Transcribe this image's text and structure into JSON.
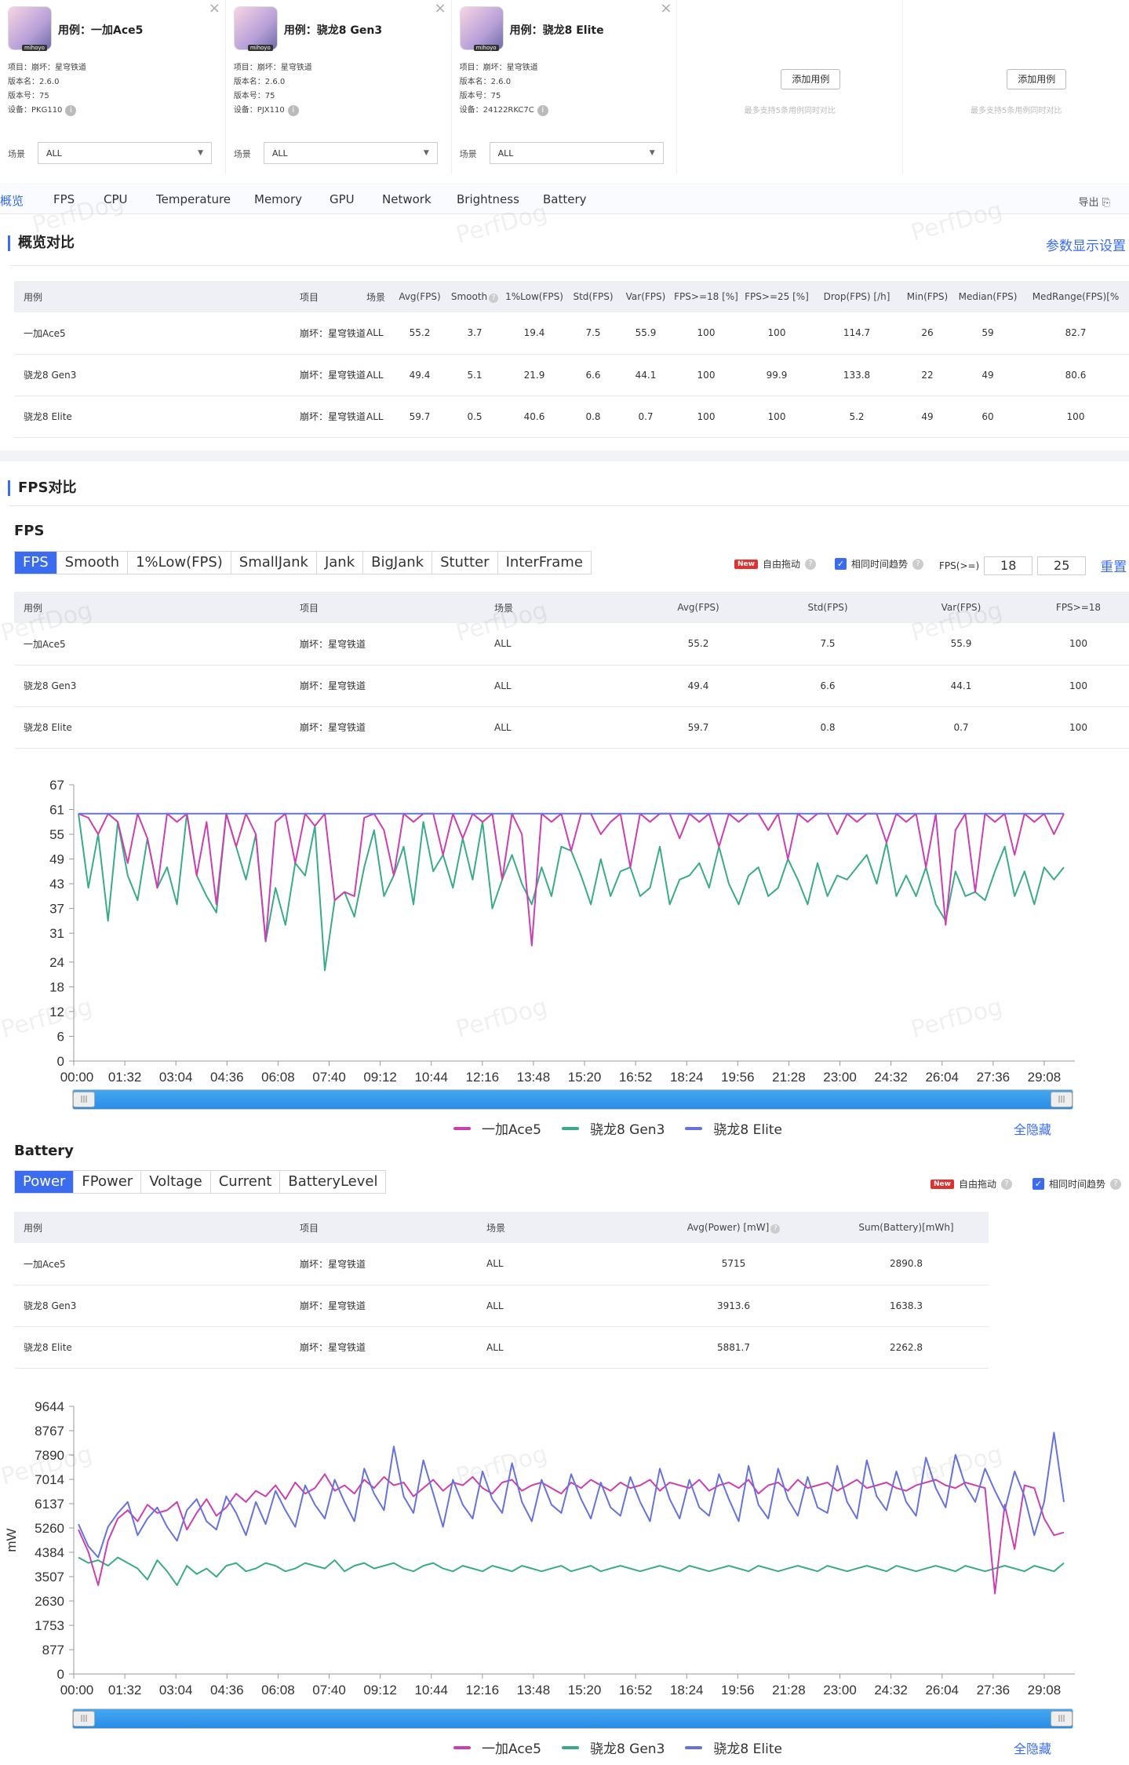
{
  "cases": [
    {
      "title": "用例：一加Ace5",
      "project": "项目：崩坏：星穹铁道",
      "version_name": "版本名：2.6.0",
      "version_code": "版本号：75",
      "device": "设备：PKG110",
      "thumb_tag": "mihoyo",
      "scene_label": "场景",
      "scene_value": "ALL"
    },
    {
      "title": "用例：骁龙8 Gen3",
      "project": "项目：崩坏：星穹铁道",
      "version_name": "版本名：2.6.0",
      "version_code": "版本号：75",
      "device": "设备：PJX110",
      "thumb_tag": "mihoyo",
      "scene_label": "场景",
      "scene_value": "ALL"
    },
    {
      "title": "用例：骁龙8 Elite",
      "project": "项目：崩坏：星穹铁道",
      "version_name": "版本名：2.6.0",
      "version_code": "版本号：75",
      "device": "设备：24122RKC7C",
      "thumb_tag": "mihoyo",
      "scene_label": "场景",
      "scene_value": "ALL"
    }
  ],
  "add_case": {
    "label": "添加用例",
    "note": "最多支持5条用例同时对比"
  },
  "tabs": [
    "概览",
    "FPS",
    "CPU",
    "Temperature",
    "Memory",
    "GPU",
    "Network",
    "Brightness",
    "Battery"
  ],
  "export_label": "导出",
  "overview": {
    "title": "概览对比",
    "settings_link": "参数显示设置",
    "headers": [
      "用例",
      "项目",
      "场景",
      "Avg(FPS)",
      "Smooth",
      "1%Low(FPS)",
      "Std(FPS)",
      "Var(FPS)",
      "FPS>=18 [%]",
      "FPS>=25 [%]",
      "Drop(FPS) [/h]",
      "Min(FPS)",
      "Median(FPS)",
      "MedRange(FPS)[%"
    ],
    "rows": [
      [
        "一加Ace5",
        "崩坏：星穹铁道",
        "ALL",
        "55.2",
        "3.7",
        "19.4",
        "7.5",
        "55.9",
        "100",
        "100",
        "114.7",
        "26",
        "59",
        "82.7"
      ],
      [
        "骁龙8 Gen3",
        "崩坏：星穹铁道",
        "ALL",
        "49.4",
        "5.1",
        "21.9",
        "6.6",
        "44.1",
        "100",
        "99.9",
        "133.8",
        "22",
        "49",
        "80.6"
      ],
      [
        "骁龙8 Elite",
        "崩坏：星穹铁道",
        "ALL",
        "59.7",
        "0.5",
        "40.6",
        "0.8",
        "0.7",
        "100",
        "100",
        "5.2",
        "49",
        "60",
        "100"
      ]
    ]
  },
  "fps_section": {
    "title": "FPS对比",
    "subtitle": "FPS",
    "seg": [
      "FPS",
      "Smooth",
      "1%Low(FPS)",
      "SmallJank",
      "Jank",
      "BigJank",
      "Stutter",
      "InterFrame"
    ],
    "new_badge": "New",
    "free_drag": "自由拖动",
    "same_trend": "相同时间趋势",
    "fps_ge": "FPS(>=)",
    "fps_ge_1": "18",
    "fps_ge_2": "25",
    "reset": "重置",
    "headers": [
      "用例",
      "项目",
      "场景",
      "Avg(FPS)",
      "Std(FPS)",
      "Var(FPS)",
      "FPS>=18"
    ],
    "rows": [
      [
        "一加Ace5",
        "崩坏：星穹铁道",
        "ALL",
        "55.2",
        "7.5",
        "55.9",
        "100"
      ],
      [
        "骁龙8 Gen3",
        "崩坏：星穹铁道",
        "ALL",
        "49.4",
        "6.6",
        "44.1",
        "100"
      ],
      [
        "骁龙8 Elite",
        "崩坏：星穹铁道",
        "ALL",
        "59.7",
        "0.8",
        "0.7",
        "100"
      ]
    ]
  },
  "battery_section": {
    "subtitle": "Battery",
    "seg": [
      "Power",
      "FPower",
      "Voltage",
      "Current",
      "BatteryLevel"
    ],
    "headers": [
      "用例",
      "项目",
      "场景",
      "Avg(Power) [mW]",
      "Sum(Battery)[mWh]"
    ],
    "rows": [
      [
        "一加Ace5",
        "崩坏：星穹铁道",
        "ALL",
        "5715",
        "2890.8"
      ],
      [
        "骁龙8 Gen3",
        "崩坏：星穹铁道",
        "ALL",
        "3913.6",
        "1638.3"
      ],
      [
        "骁龙8 Elite",
        "崩坏：星穹铁道",
        "ALL",
        "5881.7",
        "2262.8"
      ]
    ]
  },
  "legend": [
    "一加Ace5",
    "骁龙8 Gen3",
    "骁龙8 Elite"
  ],
  "hide_all": "全隐藏",
  "watermark": "PerfDog",
  "colors": {
    "ace5": "#cc3fb0",
    "gen3": "#3aab8a",
    "elite": "#6673dd",
    "accent": "#3b6cf0"
  },
  "chart_data": [
    {
      "type": "line",
      "ylim": [
        0,
        67
      ],
      "yticks": [
        0,
        6,
        12,
        18,
        24,
        31,
        37,
        43,
        49,
        55,
        61,
        67
      ],
      "xticks": [
        "00:00",
        "01:32",
        "03:04",
        "04:36",
        "06:08",
        "07:40",
        "09:12",
        "10:44",
        "12:16",
        "13:48",
        "15:20",
        "16:52",
        "18:24",
        "19:56",
        "21:28",
        "23:00",
        "24:32",
        "26:04",
        "27:36",
        "29:08"
      ],
      "series": [
        {
          "name": "一加Ace5",
          "values": [
            60,
            59,
            55,
            60,
            58,
            48,
            60,
            54,
            42,
            60,
            58,
            60,
            45,
            58,
            38,
            60,
            52,
            60,
            55,
            29,
            58,
            60,
            48,
            60,
            57,
            60,
            39,
            41,
            40,
            59,
            60,
            56,
            45,
            60,
            58,
            60,
            60,
            50,
            60,
            54,
            60,
            58,
            60,
            44,
            60,
            55,
            28,
            60,
            58,
            60,
            51,
            60,
            60,
            55,
            58,
            60,
            47,
            60,
            58,
            60,
            60,
            54,
            60,
            58,
            60,
            52,
            60,
            58,
            60,
            60,
            56,
            60,
            49,
            60,
            58,
            60,
            60,
            55,
            60,
            58,
            60,
            60,
            53,
            60,
            58,
            60,
            47,
            60,
            33,
            56,
            60,
            41,
            60,
            58,
            60,
            50,
            60,
            58,
            60,
            55,
            60
          ]
        },
        {
          "name": "骁龙8 Gen3",
          "values": [
            60,
            42,
            55,
            34,
            58,
            45,
            39,
            54,
            42,
            47,
            38,
            60,
            45,
            40,
            36,
            60,
            52,
            44,
            55,
            29,
            42,
            33,
            48,
            45,
            57,
            22,
            39,
            41,
            35,
            47,
            56,
            40,
            45,
            52,
            38,
            58,
            46,
            50,
            42,
            54,
            44,
            58,
            37,
            44,
            50,
            43,
            38,
            47,
            40,
            52,
            51,
            45,
            38,
            49,
            40,
            46,
            47,
            40,
            42,
            52,
            38,
            44,
            45,
            48,
            42,
            52,
            43,
            38,
            45,
            47,
            40,
            42,
            49,
            44,
            38,
            48,
            40,
            45,
            44,
            47,
            50,
            43,
            53,
            40,
            45,
            40,
            47,
            38,
            34,
            46,
            40,
            41,
            39,
            46,
            52,
            40,
            46,
            38,
            47,
            44,
            47
          ]
        },
        {
          "name": "骁龙8 Elite",
          "values": [
            60,
            60,
            60,
            60,
            60,
            60,
            60,
            60,
            60,
            60,
            60,
            60,
            60,
            60,
            60,
            60,
            60,
            60,
            60,
            60,
            60,
            60,
            60,
            60,
            60,
            60,
            60,
            60,
            60,
            60,
            60,
            60,
            60,
            60,
            60,
            60,
            60,
            60,
            60,
            60,
            60,
            60,
            60,
            60,
            60,
            60,
            60,
            60,
            60,
            60,
            60,
            60,
            60,
            60,
            60,
            60,
            60,
            60,
            60,
            60,
            60,
            60,
            60,
            60,
            60,
            60,
            60,
            60,
            60,
            60,
            60,
            60,
            60,
            60,
            60,
            60,
            60,
            60,
            60,
            60,
            60,
            60,
            60,
            60,
            60,
            60,
            60,
            60,
            60,
            60,
            60,
            60,
            60,
            60,
            60,
            60,
            60,
            60,
            60,
            60,
            60
          ]
        }
      ]
    },
    {
      "type": "line",
      "ylabel": "mW",
      "ylim": [
        0,
        9644
      ],
      "yticks": [
        0,
        877,
        1753,
        2630,
        3507,
        4384,
        5260,
        6137,
        7014,
        7890,
        8767,
        9644
      ],
      "xticks": [
        "00:00",
        "01:32",
        "03:04",
        "04:36",
        "06:08",
        "07:40",
        "09:12",
        "10:44",
        "12:16",
        "13:48",
        "15:20",
        "16:52",
        "18:24",
        "19:56",
        "21:28",
        "23:00",
        "24:32",
        "26:04",
        "27:36",
        "29:08"
      ],
      "series": [
        {
          "name": "一加Ace5",
          "values": [
            5200,
            4400,
            3200,
            4800,
            5600,
            5900,
            5500,
            6100,
            5800,
            5900,
            6200,
            5200,
            5800,
            6300,
            5700,
            6000,
            6500,
            6200,
            6600,
            6400,
            6800,
            6300,
            6900,
            6500,
            6700,
            7200,
            6600,
            6800,
            6500,
            7000,
            6700,
            7100,
            6800,
            6900,
            6400,
            6700,
            7000,
            6600,
            6900,
            6800,
            7100,
            6700,
            6500,
            6900,
            7000,
            6600,
            6800,
            6900,
            6700,
            6500,
            6900,
            6700,
            7000,
            6800,
            6600,
            6900,
            6700,
            6800,
            7000,
            6600,
            6900,
            6800,
            6700,
            7000,
            6600,
            6800,
            6900,
            6700,
            7000,
            6500,
            6800,
            6900,
            6600,
            7000,
            6700,
            6800,
            6900,
            6600,
            6800,
            7000,
            6700,
            6800,
            6900,
            6700,
            6600,
            6800,
            6900,
            7000,
            6800,
            6700,
            6900,
            6800,
            6700,
            2900,
            6100,
            4500,
            6800,
            6700,
            5600,
            5000,
            5100
          ]
        },
        {
          "name": "骁龙8 Gen3",
          "values": [
            4200,
            4000,
            4100,
            3900,
            4200,
            4000,
            3800,
            3400,
            4100,
            3700,
            3200,
            3900,
            3600,
            3800,
            3500,
            3900,
            4000,
            3700,
            3800,
            4000,
            3900,
            3700,
            3800,
            4000,
            3900,
            3800,
            4100,
            3700,
            3900,
            4000,
            3800,
            3900,
            4000,
            3800,
            3700,
            3900,
            4000,
            3800,
            3700,
            3900,
            3800,
            3700,
            3900,
            3800,
            3700,
            3900,
            3800,
            3700,
            3800,
            3900,
            3700,
            3800,
            3900,
            3700,
            3800,
            3900,
            3800,
            3700,
            3800,
            3900,
            3800,
            3700,
            3900,
            3800,
            3700,
            3800,
            3900,
            3800,
            3700,
            3900,
            3800,
            3700,
            3800,
            3900,
            3800,
            3700,
            3900,
            3800,
            3700,
            3800,
            3900,
            3800,
            3700,
            3900,
            3800,
            3700,
            3800,
            3900,
            3800,
            3700,
            3900,
            3800,
            3700,
            3800,
            3900,
            3800,
            3700,
            3900,
            3800,
            3700,
            4000
          ]
        },
        {
          "name": "骁龙8 Elite",
          "values": [
            5400,
            4600,
            4200,
            5300,
            5800,
            6200,
            5000,
            5600,
            6000,
            5300,
            4800,
            5900,
            6300,
            5500,
            5200,
            6400,
            5800,
            5000,
            6200,
            5400,
            6600,
            5900,
            5300,
            6800,
            6100,
            5600,
            7000,
            6200,
            5500,
            7400,
            6500,
            5900,
            8200,
            6400,
            5800,
            7700,
            6500,
            5300,
            7000,
            6100,
            5600,
            7300,
            6300,
            5800,
            7600,
            6200,
            5500,
            7000,
            6100,
            5800,
            7200,
            6300,
            5600,
            6900,
            6000,
            5700,
            7100,
            6200,
            5500,
            7400,
            6300,
            5600,
            7000,
            6000,
            5700,
            7200,
            6300,
            5500,
            7500,
            6100,
            5600,
            7400,
            6300,
            5700,
            7100,
            6000,
            5800,
            7500,
            6200,
            5600,
            7700,
            6400,
            5900,
            7300,
            6200,
            5700,
            7800,
            6700,
            6000,
            7900,
            6800,
            6200,
            7400,
            6600,
            5900,
            7300,
            6400,
            5000,
            6200,
            8700,
            6200
          ]
        }
      ]
    }
  ]
}
